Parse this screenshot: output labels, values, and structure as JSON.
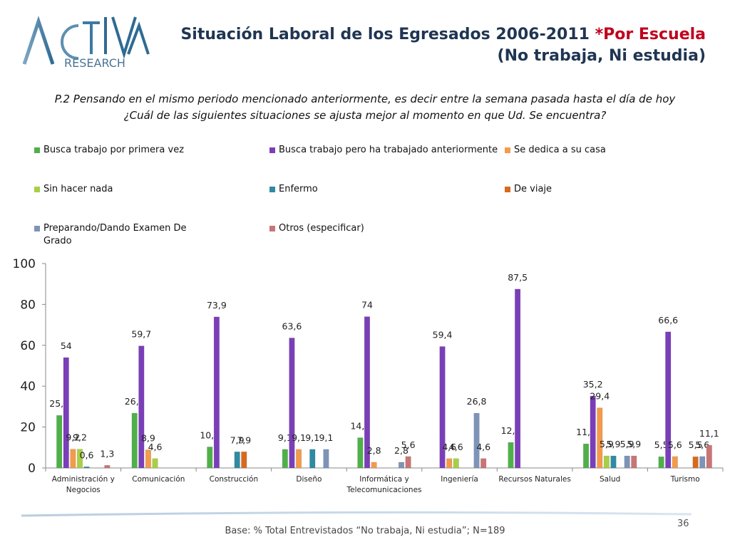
{
  "header": {
    "logo_main": "ACTIVA",
    "logo_sub": "RESEARCH",
    "title_line1": "Situación Laboral de los Egresados 2006-2011",
    "title_highlight": "*Por Escuela",
    "title_line2": "(No trabaja, Ni estudia)"
  },
  "question": {
    "line1": "P.2  Pensando en el mismo periodo mencionado anteriormente, es decir entre la semana pasada hasta el día de hoy",
    "line2": "¿Cuál de las siguientes situaciones se ajusta mejor al momento en que Ud. Se encuentra?"
  },
  "chart_data": {
    "type": "bar",
    "ylim": [
      0,
      100
    ],
    "yticks": [
      0,
      20,
      40,
      60,
      80,
      100
    ],
    "grid": false,
    "legend_position": "top",
    "categories": [
      "Administración y Negocios",
      "Comunicación",
      "Construcción",
      "Diseño",
      "Informática y Telecomunicaciones",
      "Ingeniería",
      "Recursos Naturales",
      "Salud",
      "Turismo"
    ],
    "category_labels": [
      [
        "Administración y",
        "Negocios"
      ],
      [
        "Comunicación"
      ],
      [
        "Construcción"
      ],
      [
        "Diseño"
      ],
      [
        "Informática y",
        "Telecomunicaciones"
      ],
      [
        "Ingeniería"
      ],
      [
        "Recursos Naturales"
      ],
      [
        "Salud"
      ],
      [
        "Turismo"
      ]
    ],
    "series": [
      {
        "name": "Busca trabajo por primera vez",
        "color": "#4fb04a",
        "values": [
          25.7,
          26.8,
          10.3,
          9.1,
          14.8,
          null,
          12.5,
          11.8,
          5.5
        ],
        "labels": [
          "25,7",
          "26,8",
          "10,3",
          "9,1",
          "14,8",
          null,
          "12,5",
          "11,8",
          "5,5"
        ]
      },
      {
        "name": "Busca trabajo pero ha trabajado anteriormente",
        "color": "#7a3fb8",
        "values": [
          54,
          59.7,
          73.9,
          63.6,
          74,
          59.4,
          87.5,
          35.2,
          66.6
        ],
        "labels": [
          "54",
          "59,7",
          "73,9",
          "63,6",
          "74",
          "59,4",
          "87,5",
          "35,2",
          "66,6"
        ]
      },
      {
        "name": "Se dedica a su casa",
        "color": "#f39a4c",
        "values": [
          9.2,
          8.9,
          null,
          9.1,
          2.8,
          4.6,
          null,
          29.4,
          5.6
        ],
        "labels": [
          "9,2",
          "8,9",
          null,
          "9,1",
          "2,8",
          "4,6",
          null,
          "29,4",
          "5,6"
        ]
      },
      {
        "name": "Sin hacer nada",
        "color": "#a8cf45",
        "values": [
          9.2,
          4.6,
          null,
          null,
          null,
          4.6,
          null,
          5.9,
          null
        ],
        "labels": [
          "9,2",
          "4,6",
          null,
          null,
          null,
          "4,6",
          null,
          "5,9",
          null
        ]
      },
      {
        "name": "Enfermo",
        "color": "#2f8aa3",
        "values": [
          0.6,
          null,
          7.9,
          9.1,
          null,
          null,
          null,
          5.9,
          null
        ],
        "labels": [
          "0,6",
          null,
          "7,9",
          "9,1",
          null,
          null,
          null,
          "5,9",
          null
        ]
      },
      {
        "name": "De viaje",
        "color": "#d86a1e",
        "values": [
          null,
          null,
          7.9,
          null,
          null,
          null,
          null,
          null,
          5.5
        ],
        "labels": [
          null,
          null,
          "7,9",
          null,
          null,
          null,
          null,
          null,
          "5,5"
        ]
      },
      {
        "name": "Preparando/Dando Examen De Grado",
        "color": "#7d93b8",
        "values": [
          null,
          null,
          null,
          9.1,
          2.8,
          26.8,
          null,
          5.9,
          5.6
        ],
        "labels": [
          null,
          null,
          null,
          "9,1",
          "2,8",
          "26,8",
          null,
          "5,9",
          "5,6"
        ]
      },
      {
        "name": "Otros (especificar)",
        "color": "#c87575",
        "values": [
          1.3,
          null,
          null,
          null,
          5.6,
          4.6,
          null,
          5.9,
          11.1
        ],
        "labels": [
          "1,3",
          null,
          null,
          null,
          "5,6",
          "4,6",
          null,
          "5,9",
          "11,1"
        ]
      }
    ]
  },
  "footer": {
    "base_note": "Base: % Total Entrevistados “No trabaja, Ni estudia”; N=189",
    "page_number": "36"
  }
}
